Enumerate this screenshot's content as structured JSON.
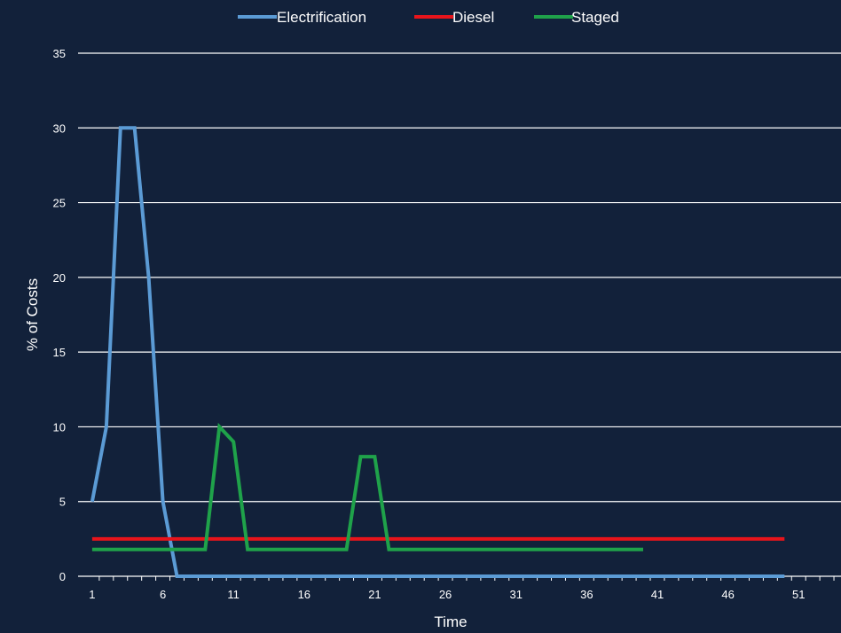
{
  "chart_data": {
    "type": "line",
    "title": "",
    "xlabel": "Time",
    "ylabel": "% of Costs",
    "xlim": [
      0,
      54
    ],
    "ylim": [
      0,
      35
    ],
    "y_ticks": [
      0,
      5,
      10,
      15,
      20,
      25,
      30,
      35
    ],
    "x_ticks": [
      1,
      6,
      11,
      16,
      21,
      26,
      31,
      36,
      41,
      46,
      51
    ],
    "x_minor_ticks": [
      1,
      2,
      3,
      4,
      5,
      6,
      7,
      8,
      9,
      10,
      11,
      12,
      13,
      14,
      15,
      16,
      17,
      18,
      19,
      20,
      21,
      22,
      23,
      24,
      25,
      26,
      27,
      28,
      29,
      30,
      31,
      32,
      33,
      34,
      35,
      36,
      37,
      38,
      39,
      40,
      41,
      42,
      43,
      44,
      45,
      46,
      47,
      48,
      49,
      50,
      51,
      52,
      53,
      54
    ],
    "grid": "horizontal",
    "legend_position": "top",
    "series": [
      {
        "name": "Electrification",
        "color": "#5b9bd5",
        "x": [
          1,
          2,
          3,
          4,
          5,
          6,
          7,
          8,
          9,
          10,
          11,
          12,
          13,
          14,
          15,
          16,
          17,
          18,
          19,
          20,
          21,
          22,
          23,
          24,
          25,
          26,
          27,
          28,
          29,
          30,
          31,
          32,
          33,
          34,
          35,
          36,
          37,
          38,
          39,
          40,
          41,
          42,
          43,
          44,
          45,
          46,
          47,
          48,
          49,
          50
        ],
        "values": [
          5,
          10,
          30,
          30,
          20,
          5,
          0,
          0,
          0,
          0,
          0,
          0,
          0,
          0,
          0,
          0,
          0,
          0,
          0,
          0,
          0,
          0,
          0,
          0,
          0,
          0,
          0,
          0,
          0,
          0,
          0,
          0,
          0,
          0,
          0,
          0,
          0,
          0,
          0,
          0,
          0,
          0,
          0,
          0,
          0,
          0,
          0,
          0,
          0,
          0
        ]
      },
      {
        "name": "Diesel",
        "color": "#e8141b",
        "x": [
          1,
          2,
          3,
          4,
          5,
          6,
          7,
          8,
          9,
          10,
          11,
          12,
          13,
          14,
          15,
          16,
          17,
          18,
          19,
          20,
          21,
          22,
          23,
          24,
          25,
          26,
          27,
          28,
          29,
          30,
          31,
          32,
          33,
          34,
          35,
          36,
          37,
          38,
          39,
          40,
          41,
          42,
          43,
          44,
          45,
          46,
          47,
          48,
          49,
          50
        ],
        "values": [
          2.5,
          2.5,
          2.5,
          2.5,
          2.5,
          2.5,
          2.5,
          2.5,
          2.5,
          2.5,
          2.5,
          2.5,
          2.5,
          2.5,
          2.5,
          2.5,
          2.5,
          2.5,
          2.5,
          2.5,
          2.5,
          2.5,
          2.5,
          2.5,
          2.5,
          2.5,
          2.5,
          2.5,
          2.5,
          2.5,
          2.5,
          2.5,
          2.5,
          2.5,
          2.5,
          2.5,
          2.5,
          2.5,
          2.5,
          2.5,
          2.5,
          2.5,
          2.5,
          2.5,
          2.5,
          2.5,
          2.5,
          2.5,
          2.5,
          2.5
        ]
      },
      {
        "name": "Staged",
        "color": "#1fa24a",
        "x": [
          1,
          2,
          3,
          4,
          5,
          6,
          7,
          8,
          9,
          10,
          11,
          12,
          13,
          14,
          15,
          16,
          17,
          18,
          19,
          20,
          21,
          22,
          23,
          24,
          25,
          26,
          27,
          28,
          29,
          30,
          31,
          32,
          33,
          34,
          35,
          36,
          37,
          38,
          39,
          40
        ],
        "values": [
          1.8,
          1.8,
          1.8,
          1.8,
          1.8,
          1.8,
          1.8,
          1.8,
          1.8,
          10,
          9,
          1.8,
          1.8,
          1.8,
          1.8,
          1.8,
          1.8,
          1.8,
          1.8,
          8,
          8,
          1.8,
          1.8,
          1.8,
          1.8,
          1.8,
          1.8,
          1.8,
          1.8,
          1.8,
          1.8,
          1.8,
          1.8,
          1.8,
          1.8,
          1.8,
          1.8,
          1.8,
          1.8,
          1.8
        ]
      }
    ]
  },
  "colors": {
    "background": "#12213a",
    "gridline": "#ffffff",
    "text": "#ffffff"
  }
}
